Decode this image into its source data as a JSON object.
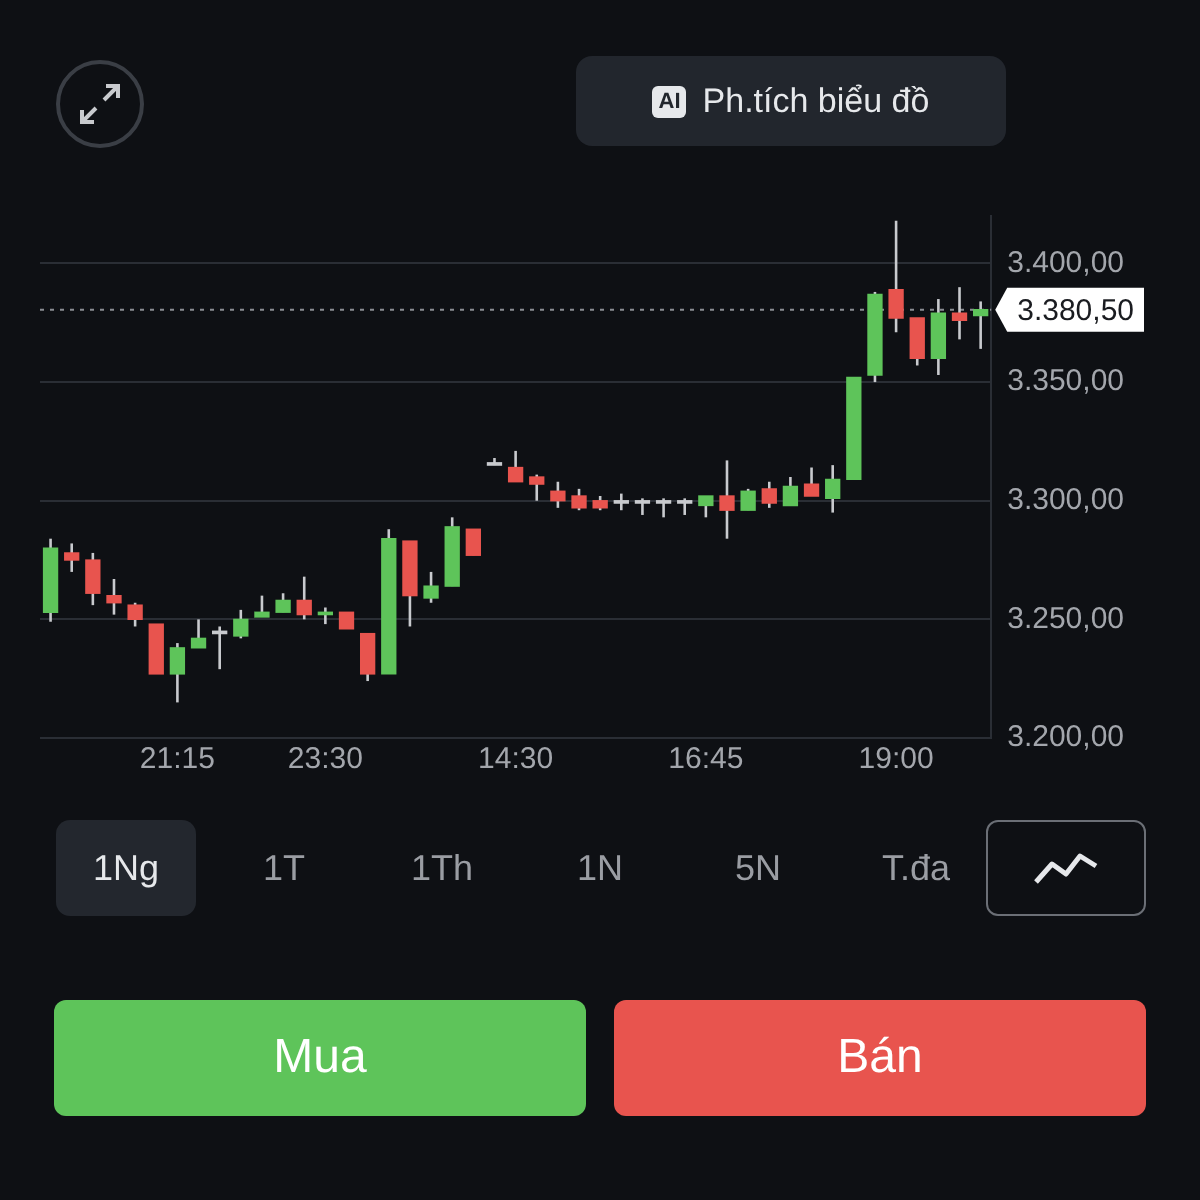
{
  "chart_data": {
    "type": "candlestick",
    "categories": [
      null,
      null,
      null,
      null,
      null,
      null,
      "21:15",
      null,
      null,
      null,
      null,
      null,
      null,
      "23:30",
      null,
      null,
      null,
      null,
      null,
      null,
      null,
      null,
      "14:30",
      null,
      null,
      null,
      null,
      null,
      null,
      null,
      null,
      "16:45",
      null,
      null,
      null,
      null,
      null,
      null,
      null,
      null,
      "19:00",
      null,
      null,
      null,
      null
    ],
    "ohlc": [
      [
        3253,
        3284,
        3249,
        3280
      ],
      [
        3278,
        3282,
        3270,
        3275
      ],
      [
        3275,
        3278,
        3256,
        3261
      ],
      [
        3260,
        3267,
        3252,
        3257
      ],
      [
        3256,
        3257,
        3247,
        3250
      ],
      [
        3248,
        3248,
        3227,
        3227
      ],
      [
        3227,
        3240,
        3215,
        3238
      ],
      [
        3238,
        3250,
        3238,
        3242
      ],
      [
        3245,
        3247,
        3229,
        3244
      ],
      [
        3243,
        3254,
        3242,
        3250
      ],
      [
        3251,
        3260,
        3251,
        3253
      ],
      [
        3253,
        3261,
        3253,
        3258
      ],
      [
        3258,
        3268,
        3250,
        3252
      ],
      [
        3252,
        3255,
        3248,
        3253
      ],
      [
        3253,
        3253,
        3246,
        3246
      ],
      [
        3244,
        3244,
        3224,
        3227
      ],
      [
        3227,
        3288,
        3227,
        3284
      ],
      [
        3283,
        3283,
        3247,
        3260
      ],
      [
        3259,
        3270,
        3257,
        3264
      ],
      [
        3264,
        3293,
        3264,
        3289
      ],
      [
        3288,
        3288,
        3277,
        3277
      ],
      [
        3315,
        3318,
        3315,
        3316
      ],
      [
        3314,
        3321,
        3308,
        3308
      ],
      [
        3310,
        3311,
        3300,
        3307
      ],
      [
        3304,
        3308,
        3297,
        3300
      ],
      [
        3302,
        3305,
        3296,
        3297
      ],
      [
        3300,
        3302,
        3296,
        3297
      ],
      [
        3299,
        3303,
        3296,
        3300
      ],
      [
        3299,
        3301,
        3294,
        3300
      ],
      [
        3299,
        3301,
        3293,
        3300
      ],
      [
        3299,
        3301,
        3294,
        3300
      ],
      [
        3298,
        3302,
        3293,
        3302
      ],
      [
        3302,
        3317,
        3284,
        3296
      ],
      [
        3296,
        3305,
        3296,
        3304
      ],
      [
        3305,
        3308,
        3297,
        3299
      ],
      [
        3298,
        3310,
        3298,
        3306
      ],
      [
        3307,
        3314,
        3302,
        3302
      ],
      [
        3301,
        3315,
        3295,
        3309
      ],
      [
        3309,
        3352,
        3309,
        3352
      ],
      [
        3353,
        3388,
        3350,
        3387
      ],
      [
        3389,
        3418,
        3371,
        3377
      ],
      [
        3377,
        3377,
        3357,
        3360
      ],
      [
        3360,
        3385,
        3353,
        3379
      ],
      [
        3379,
        3390,
        3368,
        3376
      ],
      [
        3378,
        3384,
        3364,
        3380.5
      ]
    ],
    "colors": [
      "#5ec45a",
      "#e8544e",
      "#e8544e",
      "#e8544e",
      "#e8544e",
      "#e8544e",
      "#5ec45a",
      "#5ec45a",
      "#c8cace",
      "#5ec45a",
      "#5ec45a",
      "#5ec45a",
      "#e8544e",
      "#5ec45a",
      "#e8544e",
      "#e8544e",
      "#5ec45a",
      "#e8544e",
      "#5ec45a",
      "#5ec45a",
      "#e8544e",
      "#c8cace",
      "#e8544e",
      "#e8544e",
      "#e8544e",
      "#e8544e",
      "#e8544e",
      "#c8cace",
      "#c8cace",
      "#c8cace",
      "#c8cace",
      "#5ec45a",
      "#e8544e",
      "#5ec45a",
      "#e8544e",
      "#5ec45a",
      "#e8544e",
      "#5ec45a",
      "#5ec45a",
      "#5ec45a",
      "#e8544e",
      "#e8544e",
      "#5ec45a",
      "#e8544e",
      "#5ec45a"
    ],
    "ylim": [
      3200,
      3420
    ],
    "yticks": [
      {
        "value": 3200,
        "label": "3.200,00"
      },
      {
        "value": 3250,
        "label": "3.250,00"
      },
      {
        "value": 3300,
        "label": "3.300,00"
      },
      {
        "value": 3350,
        "label": "3.350,00"
      },
      {
        "value": 3400,
        "label": "3.400,00"
      }
    ],
    "grid": "y",
    "ref_lines": [
      {
        "axis": "y",
        "value": 3380.5,
        "label": "3.380,50",
        "color": "#8a8d93",
        "line_style": "dotted"
      }
    ],
    "annotations": [
      "AI",
      "Ph.tích biểu đồ",
      "1Ng",
      "1T",
      "1Th",
      "1N",
      "5N",
      "T.đa",
      "Mua",
      "Bán"
    ]
  }
}
